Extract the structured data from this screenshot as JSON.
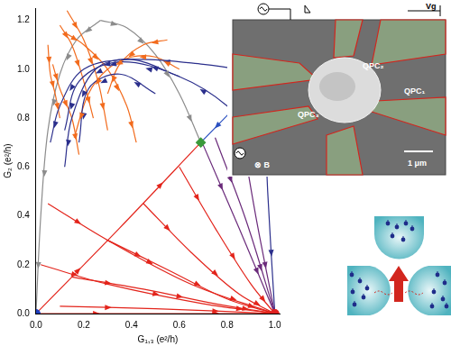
{
  "chart_data": {
    "type": "line",
    "x_label": "G₁,₃ (e²/h)",
    "y_label": "G₂ (e²/h)",
    "xlim": [
      0,
      1.02
    ],
    "ylim": [
      0,
      1.25
    ],
    "xticks": [
      {
        "value": 0,
        "label": "0.0"
      },
      {
        "value": 0.2,
        "label": "0.2"
      },
      {
        "value": 0.4,
        "label": "0.4"
      },
      {
        "value": 0.6,
        "label": "0.6"
      },
      {
        "value": 0.8,
        "label": "0.8"
      },
      {
        "value": 1,
        "label": "1.0"
      }
    ],
    "yticks": [
      {
        "value": 0,
        "label": "0.0"
      },
      {
        "value": 0.2,
        "label": "0.2"
      },
      {
        "value": 0.4,
        "label": "0.4"
      },
      {
        "value": 0.6,
        "label": "0.6"
      },
      {
        "value": 0.8,
        "label": "0.8"
      },
      {
        "value": 1,
        "label": "1.0"
      },
      {
        "value": 1.2,
        "label": "1.2"
      }
    ],
    "grid": false,
    "legend": "none",
    "series": [
      {
        "color": "#e3241b",
        "marker": "arrow",
        "x": [
          0,
          0.5,
          1
        ],
        "values": [
          0,
          0,
          0
        ]
      },
      {
        "color": "#e3241b",
        "marker": "arrow",
        "x": [
          0.1,
          0.5,
          1
        ],
        "values": [
          0.03,
          0.02,
          0
        ]
      },
      {
        "color": "#e3241b",
        "marker": "arrow",
        "x": [
          0.15,
          0.45,
          0.75,
          1
        ],
        "values": [
          0.15,
          0.1,
          0.04,
          0
        ]
      },
      {
        "color": "#e3241b",
        "marker": "arrow",
        "x": [
          0.3,
          0.55,
          0.8,
          1
        ],
        "values": [
          0.3,
          0.18,
          0.06,
          0
        ]
      },
      {
        "color": "#e3241b",
        "marker": "arrow",
        "x": [
          0.45,
          0.65,
          0.85,
          1
        ],
        "values": [
          0.45,
          0.25,
          0.08,
          0
        ]
      },
      {
        "color": "#e3241b",
        "marker": "arrow",
        "x": [
          0.6,
          0.75,
          0.9,
          1
        ],
        "values": [
          0.6,
          0.35,
          0.12,
          0
        ]
      },
      {
        "color": "#e3241b",
        "marker": "arrow",
        "x": [
          0.05,
          0.3,
          0.65,
          1
        ],
        "values": [
          0.45,
          0.3,
          0.12,
          0
        ]
      },
      {
        "color": "#e3241b",
        "marker": "arrow",
        "x": [
          0.02,
          0.3,
          0.7,
          1
        ],
        "values": [
          0.2,
          0.12,
          0.04,
          0
        ]
      },
      {
        "color": "#e3241b",
        "marker": "arrow",
        "x": [
          0,
          0.35,
          0.69
        ],
        "values": [
          0,
          0.35,
          0.7
        ]
      },
      {
        "color": "#2a4fc0",
        "marker": "arrow",
        "x": [
          0.97,
          0.83,
          0.69
        ],
        "values": [
          0.98,
          0.84,
          0.7
        ]
      },
      {
        "color": "#6a2a7a",
        "marker": "arrow",
        "x": [
          0.7,
          0.85,
          1
        ],
        "values": [
          0.69,
          0.35,
          0
        ]
      },
      {
        "color": "#6a2a7a",
        "marker": "arrow",
        "x": [
          0.75,
          0.88,
          1
        ],
        "values": [
          0.72,
          0.38,
          0
        ]
      },
      {
        "color": "#6a2a7a",
        "marker": "arrow",
        "x": [
          0.85,
          0.92,
          1
        ],
        "values": [
          0.8,
          0.4,
          0
        ]
      },
      {
        "color": "#2b2f8c",
        "marker": "arrow",
        "x": [
          0.95,
          0.97,
          1
        ],
        "values": [
          0.97,
          0.5,
          0
        ]
      },
      {
        "color": "#2b2f8c",
        "marker": "arrow",
        "x": [
          0.97,
          0.7,
          0.4,
          0.2,
          0.1,
          0.06
        ],
        "values": [
          0.98,
          1.02,
          1.04,
          1,
          0.85,
          0.7
        ]
      },
      {
        "color": "#2b2f8c",
        "marker": "arrow",
        "x": [
          0.9,
          0.8,
          0.6,
          0.35,
          0.18,
          0.12
        ],
        "values": [
          0.72,
          0.85,
          0.97,
          1.03,
          0.95,
          0.75
        ]
      },
      {
        "color": "#2b2f8c",
        "marker": "arrow",
        "x": [
          0.6,
          0.4,
          0.25,
          0.15,
          0.12
        ],
        "values": [
          0.97,
          1.04,
          1,
          0.8,
          0.6
        ]
      },
      {
        "color": "#2b2f8c",
        "marker": "arrow",
        "x": [
          0.5,
          0.35,
          0.22,
          0.18
        ],
        "values": [
          0.9,
          0.98,
          0.92,
          0.7
        ]
      },
      {
        "color": "#f26b1d",
        "marker": "arrow",
        "x": [
          0.13,
          0.2,
          0.26,
          0.3
        ],
        "values": [
          1.24,
          1.12,
          0.95,
          0.75
        ]
      },
      {
        "color": "#f26b1d",
        "marker": "arrow",
        "x": [
          0.1,
          0.15,
          0.2,
          0.24
        ],
        "values": [
          1.18,
          1.1,
          0.95,
          0.8
        ]
      },
      {
        "color": "#f26b1d",
        "marker": "arrow",
        "x": [
          0.12,
          0.2,
          0.3,
          0.38,
          0.42
        ],
        "values": [
          1.15,
          1.1,
          1,
          0.85,
          0.7
        ]
      },
      {
        "color": "#f26b1d",
        "marker": "arrow",
        "x": [
          0.05,
          0.06,
          0.08,
          0.1
        ],
        "values": [
          1.1,
          0.98,
          0.9,
          0.8
        ]
      },
      {
        "color": "#f26b1d",
        "marker": "arrow",
        "x": [
          0.6,
          0.5,
          0.4,
          0.3,
          0.22,
          0.16
        ],
        "values": [
          1,
          1.05,
          1.05,
          1,
          0.9,
          0.72
        ]
      },
      {
        "color": "#f26b1d",
        "marker": "arrow",
        "x": [
          0.55,
          0.45,
          0.35,
          0.3
        ],
        "values": [
          1.12,
          1.1,
          1.02,
          0.9
        ]
      },
      {
        "color": "#f26b1d",
        "marker": "arrow",
        "x": [
          0.07,
          0.1,
          0.15,
          0.18
        ],
        "values": [
          1.02,
          0.92,
          0.8,
          0.65
        ]
      },
      {
        "color": "#8c8c8c",
        "marker": "arrow",
        "x": [
          0.27,
          0.17,
          0.1,
          0.05,
          0.02,
          0
        ],
        "values": [
          1.2,
          1.12,
          0.98,
          0.75,
          0.4,
          0
        ]
      },
      {
        "color": "#8c8c8c",
        "marker": "arrow",
        "x": [
          0.27,
          0.38,
          0.5,
          0.6,
          0.69
        ],
        "values": [
          1.2,
          1.17,
          1.06,
          0.9,
          0.7
        ]
      },
      {
        "type": "scatter",
        "color": "#2040c0",
        "marker": "circle",
        "x": [
          0
        ],
        "values": [
          0
        ]
      },
      {
        "type": "scatter",
        "color": "#e02020",
        "marker": "circle",
        "x": [
          1
        ],
        "values": [
          0
        ]
      },
      {
        "type": "scatter",
        "color": "#3a9a3a",
        "marker": "diamond",
        "x": [
          0.69
        ],
        "values": [
          0.7
        ]
      }
    ],
    "annotations": [
      "QPC₂",
      "QPC₁",
      "QPC₃",
      "1 μm",
      "⊗ B",
      "Vg"
    ]
  }
}
